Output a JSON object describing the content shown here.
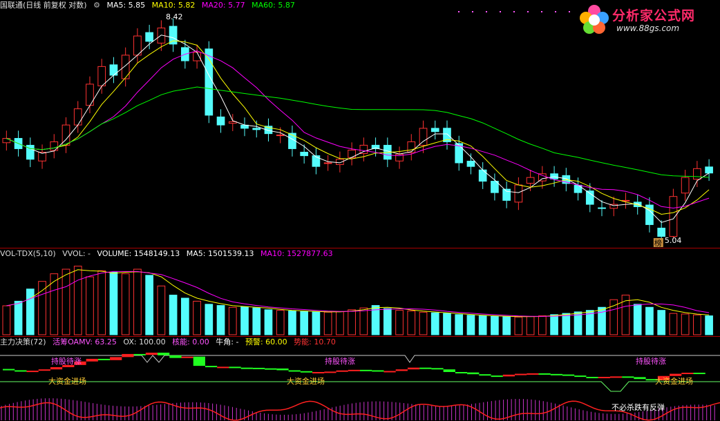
{
  "price_header": {
    "stock_label": "国联通(日线 前复权 对数)",
    "ma5": "MA5: 5.85",
    "ma10": "MA10: 5.82",
    "ma20": "MA20: 5.77",
    "ma60": "MA60: 5.87",
    "high_label": "8.42",
    "low_label": "5.04",
    "low_marker": "榜"
  },
  "vol_header": {
    "name": "VOL-TDX(5,10)",
    "vvol": "VVOL: -",
    "volume": "VOLUME: 1548149.13",
    "ma5": "MA5: 1501539.13",
    "ma10": "MA10: 1527877.63"
  },
  "ind_header": {
    "name": "主力决策(72)",
    "oamv": "活筹OAMV: 63.25",
    "ox": "OX: 100.00",
    "core": "核能: 0.00",
    "bull": "牛角: -",
    "warn": "预警: 60.00",
    "power": "势能: 10.70",
    "tag_hold": "持股待涨",
    "tag_fund": "大资金进场",
    "tag_rebound": "不必杀跌有反弹"
  },
  "logo": {
    "brand": "分析家公式网",
    "url": "www.88gs.com"
  },
  "colors": {
    "up": "#ff3232",
    "down": "#54fcfc",
    "ma5": "#ffffff",
    "ma10": "#ffff00",
    "ma20": "#ff00ff",
    "ma60": "#00ff00",
    "hold": "#ff55ff",
    "fund": "#ffcc33"
  },
  "chart_data": {
    "type": "candlestick",
    "log_scale": true,
    "bars": 60,
    "close": [
      6.35,
      6.2,
      6.05,
      6.15,
      6.3,
      6.55,
      6.8,
      7.2,
      7.5,
      7.35,
      7.7,
      8.05,
      7.95,
      8.2,
      7.9,
      7.6,
      7.75,
      6.7,
      6.55,
      6.6,
      6.5,
      6.48,
      6.42,
      6.4,
      6.2,
      6.1,
      5.95,
      6.0,
      6.05,
      6.18,
      6.25,
      6.2,
      6.05,
      6.12,
      6.3,
      6.5,
      6.45,
      6.3,
      6.0,
      5.95,
      5.75,
      5.6,
      5.5,
      5.7,
      5.8,
      5.85,
      5.78,
      5.72,
      5.6,
      5.45,
      5.4,
      5.45,
      5.5,
      5.42,
      5.2,
      5.06,
      5.55,
      5.8,
      5.92,
      5.86
    ],
    "volume": [
      95,
      110,
      150,
      175,
      200,
      215,
      225,
      190,
      210,
      205,
      200,
      215,
      195,
      160,
      130,
      120,
      110,
      100,
      96,
      90,
      92,
      88,
      82,
      80,
      78,
      76,
      75,
      74,
      76,
      82,
      88,
      96,
      86,
      80,
      78,
      74,
      72,
      70,
      66,
      64,
      62,
      60,
      60,
      58,
      60,
      62,
      66,
      70,
      75,
      80,
      90,
      115,
      130,
      100,
      90,
      80,
      70,
      68,
      65,
      62
    ],
    "volume_label": "1548149.13",
    "ylim": [
      5.04,
      8.42
    ],
    "high_label": "8.42",
    "low_label": "5.04"
  }
}
